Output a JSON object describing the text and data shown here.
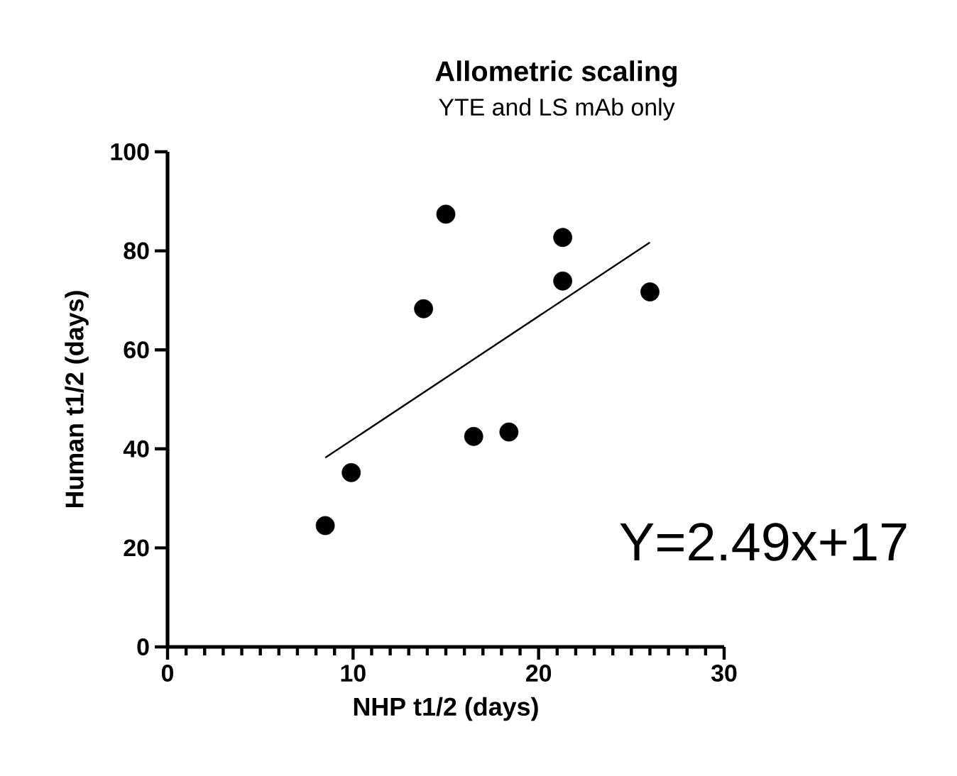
{
  "chart_data": {
    "type": "scatter",
    "title": "Allometric scaling",
    "subtitle": "YTE and  LS mAb only",
    "xlabel": "NHP t1/2 (days)",
    "ylabel": "Human t1/2 (days)",
    "annotations": [
      "Y=2.49x+17"
    ],
    "xlim": [
      0,
      30
    ],
    "xticks": [
      0,
      10,
      20,
      30
    ],
    "ylim": [
      0,
      100
    ],
    "yticks": [
      0,
      20,
      40,
      60,
      80,
      100
    ],
    "grid": false,
    "series": [
      {
        "color": "#000000",
        "marker": "circle",
        "x": [
          8.5,
          9.9,
          13.8,
          15.0,
          16.5,
          18.4,
          21.3,
          21.3,
          26.0
        ],
        "values": [
          24.5,
          35.2,
          68.3,
          87.4,
          42.5,
          43.4,
          82.7,
          73.9,
          71.7
        ]
      },
      {
        "type": "line",
        "color": "#000000",
        "marker": "none",
        "line_style": "solid",
        "x": [
          8.5,
          26.0
        ],
        "values": [
          38.2,
          81.7
        ]
      }
    ]
  }
}
